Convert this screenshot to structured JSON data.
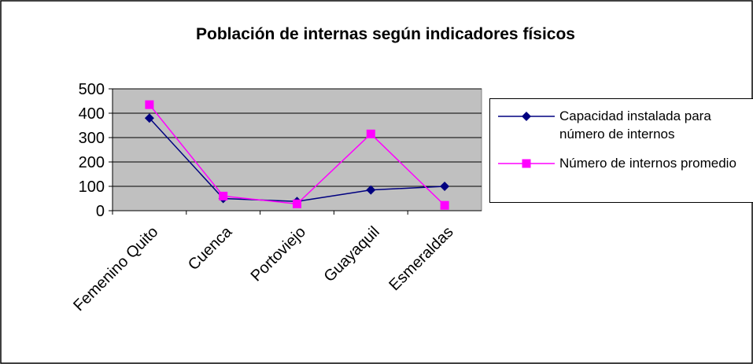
{
  "chart_data": {
    "type": "line",
    "title": "Población de internas según indicadores físicos",
    "categories": [
      "Femenino Quito",
      "Cuenca",
      "Portoviejo",
      "Guayaquil",
      "Esmeraldas"
    ],
    "series": [
      {
        "name": "Capacidad instalada para número de internos",
        "color": "#000080",
        "marker": "diamond",
        "values": [
          380,
          50,
          38,
          85,
          100
        ]
      },
      {
        "name": "Número de internos promedio",
        "color": "#ff00ff",
        "marker": "square",
        "values": [
          435,
          60,
          28,
          315,
          22
        ]
      }
    ],
    "ylim": [
      0,
      500
    ],
    "yticks": [
      0,
      100,
      200,
      300,
      400,
      500
    ],
    "grid": true,
    "legend": "right"
  }
}
